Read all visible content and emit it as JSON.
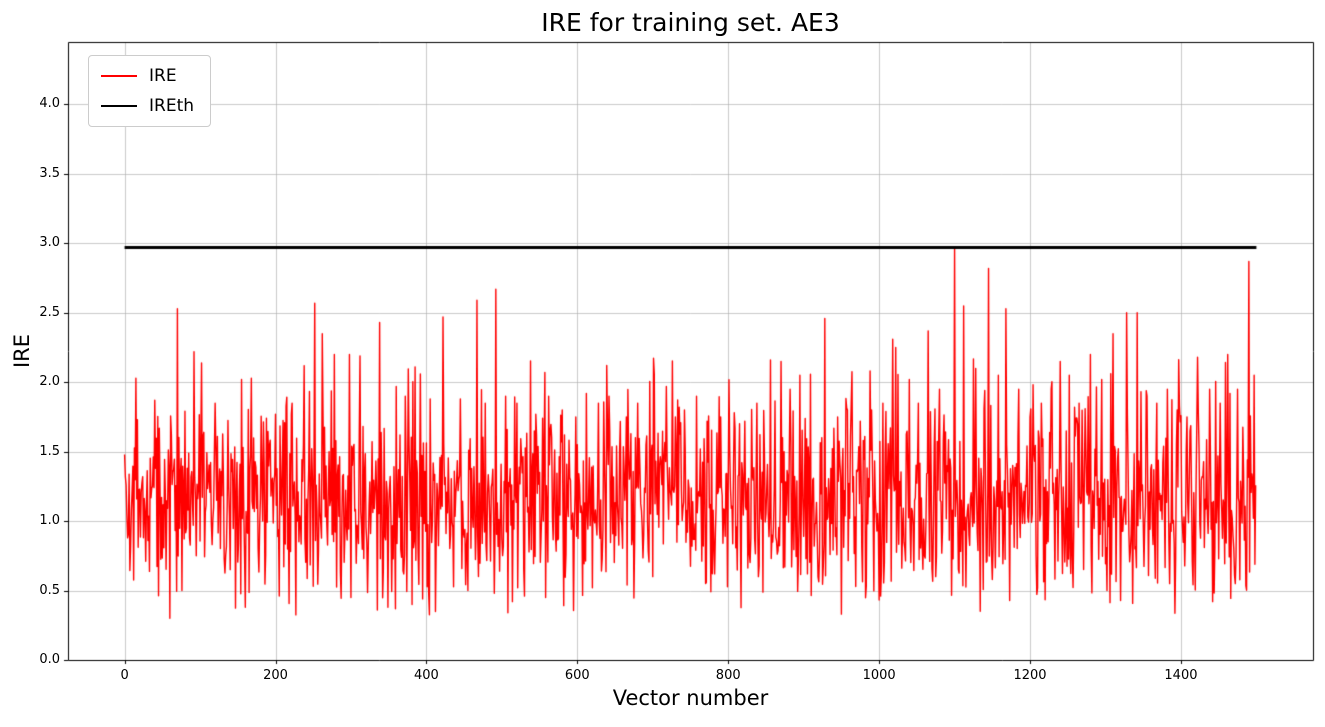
{
  "chart_data": {
    "type": "line",
    "title": "IRE for training set. AE3",
    "xlabel": "Vector number",
    "ylabel": "IRE",
    "xlim": [
      -75,
      1575
    ],
    "ylim": [
      0,
      4.45
    ],
    "xticks": [
      0,
      200,
      400,
      600,
      800,
      1000,
      1200,
      1400
    ],
    "yticks": [
      0.0,
      0.5,
      1.0,
      1.5,
      2.0,
      2.5,
      3.0,
      3.5,
      4.0
    ],
    "grid": true,
    "legend": {
      "position": "upper-left",
      "entries": [
        {
          "label": "IRE",
          "color": "#ff0000",
          "line_width": 2
        },
        {
          "label": "IREth",
          "color": "#000000",
          "line_width": 3
        }
      ]
    },
    "series": [
      {
        "name": "IRE",
        "type": "noisy-line",
        "color": "#ff0000",
        "line_width": 1.4,
        "n_points": 1500,
        "x_start": 0,
        "baseline_mean": 1.12,
        "baseline_std": 0.33,
        "min_value": 0.29,
        "max_value": 2.97,
        "seed": 42,
        "peaks": [
          [
            15,
            2.03
          ],
          [
            40,
            1.87
          ],
          [
            70,
            2.53
          ],
          [
            92,
            2.22
          ],
          [
            120,
            1.85
          ],
          [
            155,
            2.02
          ],
          [
            168,
            2.03
          ],
          [
            200,
            1.77
          ],
          [
            222,
            1.85
          ],
          [
            238,
            2.12
          ],
          [
            252,
            2.57
          ],
          [
            262,
            2.35
          ],
          [
            278,
            2.2
          ],
          [
            298,
            2.2
          ],
          [
            312,
            2.19
          ],
          [
            338,
            2.43
          ],
          [
            360,
            1.97
          ],
          [
            372,
            1.9
          ],
          [
            392,
            2.06
          ],
          [
            405,
            1.88
          ],
          [
            422,
            2.47
          ],
          [
            445,
            1.88
          ],
          [
            467,
            2.59
          ],
          [
            478,
            1.85
          ],
          [
            492,
            2.67
          ],
          [
            505,
            1.9
          ],
          [
            520,
            1.85
          ],
          [
            545,
            1.77
          ],
          [
            562,
            1.9
          ],
          [
            580,
            1.8
          ],
          [
            598,
            1.75
          ],
          [
            612,
            1.92
          ],
          [
            628,
            1.85
          ],
          [
            642,
            1.9
          ],
          [
            665,
            1.75
          ],
          [
            680,
            1.85
          ],
          [
            702,
            2.06
          ],
          [
            718,
            1.97
          ],
          [
            730,
            1.75
          ],
          [
            742,
            1.8
          ],
          [
            758,
            1.9
          ],
          [
            772,
            1.72
          ],
          [
            790,
            1.75
          ],
          [
            808,
            1.78
          ],
          [
            822,
            1.72
          ],
          [
            838,
            1.85
          ],
          [
            856,
            2.16
          ],
          [
            870,
            2.15
          ],
          [
            882,
            1.95
          ],
          [
            895,
            2.05
          ],
          [
            905,
            1.85
          ],
          [
            928,
            2.46
          ],
          [
            945,
            1.75
          ],
          [
            958,
            1.8
          ],
          [
            975,
            1.72
          ],
          [
            990,
            1.8
          ],
          [
            1005,
            1.85
          ],
          [
            1018,
            2.31
          ],
          [
            1022,
            2.25
          ],
          [
            1040,
            2.02
          ],
          [
            1052,
            1.85
          ],
          [
            1065,
            2.37
          ],
          [
            1080,
            1.95
          ],
          [
            1100,
            2.97
          ],
          [
            1112,
            2.55
          ],
          [
            1128,
            2.1
          ],
          [
            1145,
            2.82
          ],
          [
            1158,
            2.05
          ],
          [
            1168,
            2.53
          ],
          [
            1185,
            1.95
          ],
          [
            1200,
            1.75
          ],
          [
            1215,
            1.85
          ],
          [
            1228,
            1.95
          ],
          [
            1240,
            2.15
          ],
          [
            1252,
            2.05
          ],
          [
            1265,
            1.85
          ],
          [
            1280,
            2.2
          ],
          [
            1295,
            2.02
          ],
          [
            1310,
            2.35
          ],
          [
            1328,
            2.5
          ],
          [
            1342,
            2.5
          ],
          [
            1355,
            1.9
          ],
          [
            1368,
            1.85
          ],
          [
            1382,
            1.95
          ],
          [
            1395,
            1.8
          ],
          [
            1408,
            1.75
          ],
          [
            1422,
            2.18
          ],
          [
            1438,
            1.95
          ],
          [
            1452,
            1.85
          ],
          [
            1462,
            2.2
          ],
          [
            1475,
            1.95
          ],
          [
            1490,
            2.87
          ],
          [
            1497,
            2.05
          ]
        ],
        "dips": [
          [
            60,
            0.3
          ],
          [
            160,
            0.38
          ],
          [
            205,
            0.46
          ],
          [
            300,
            0.45
          ],
          [
            335,
            0.36
          ],
          [
            395,
            0.44
          ],
          [
            455,
            0.5
          ],
          [
            490,
            0.48
          ],
          [
            530,
            0.46
          ],
          [
            558,
            0.45
          ],
          [
            620,
            0.52
          ],
          [
            700,
            0.6
          ],
          [
            770,
            0.55
          ],
          [
            840,
            0.6
          ],
          [
            905,
            0.62
          ],
          [
            950,
            0.33
          ],
          [
            1002,
            0.46
          ],
          [
            1075,
            0.6
          ],
          [
            1150,
            0.58
          ],
          [
            1210,
            0.52
          ],
          [
            1302,
            0.5
          ],
          [
            1385,
            0.55
          ],
          [
            1442,
            0.42
          ],
          [
            1472,
            0.55
          ]
        ]
      },
      {
        "name": "IREth",
        "type": "hline",
        "color": "#000000",
        "line_width": 3,
        "value": 2.97,
        "x_range": [
          0,
          1500
        ]
      }
    ]
  }
}
